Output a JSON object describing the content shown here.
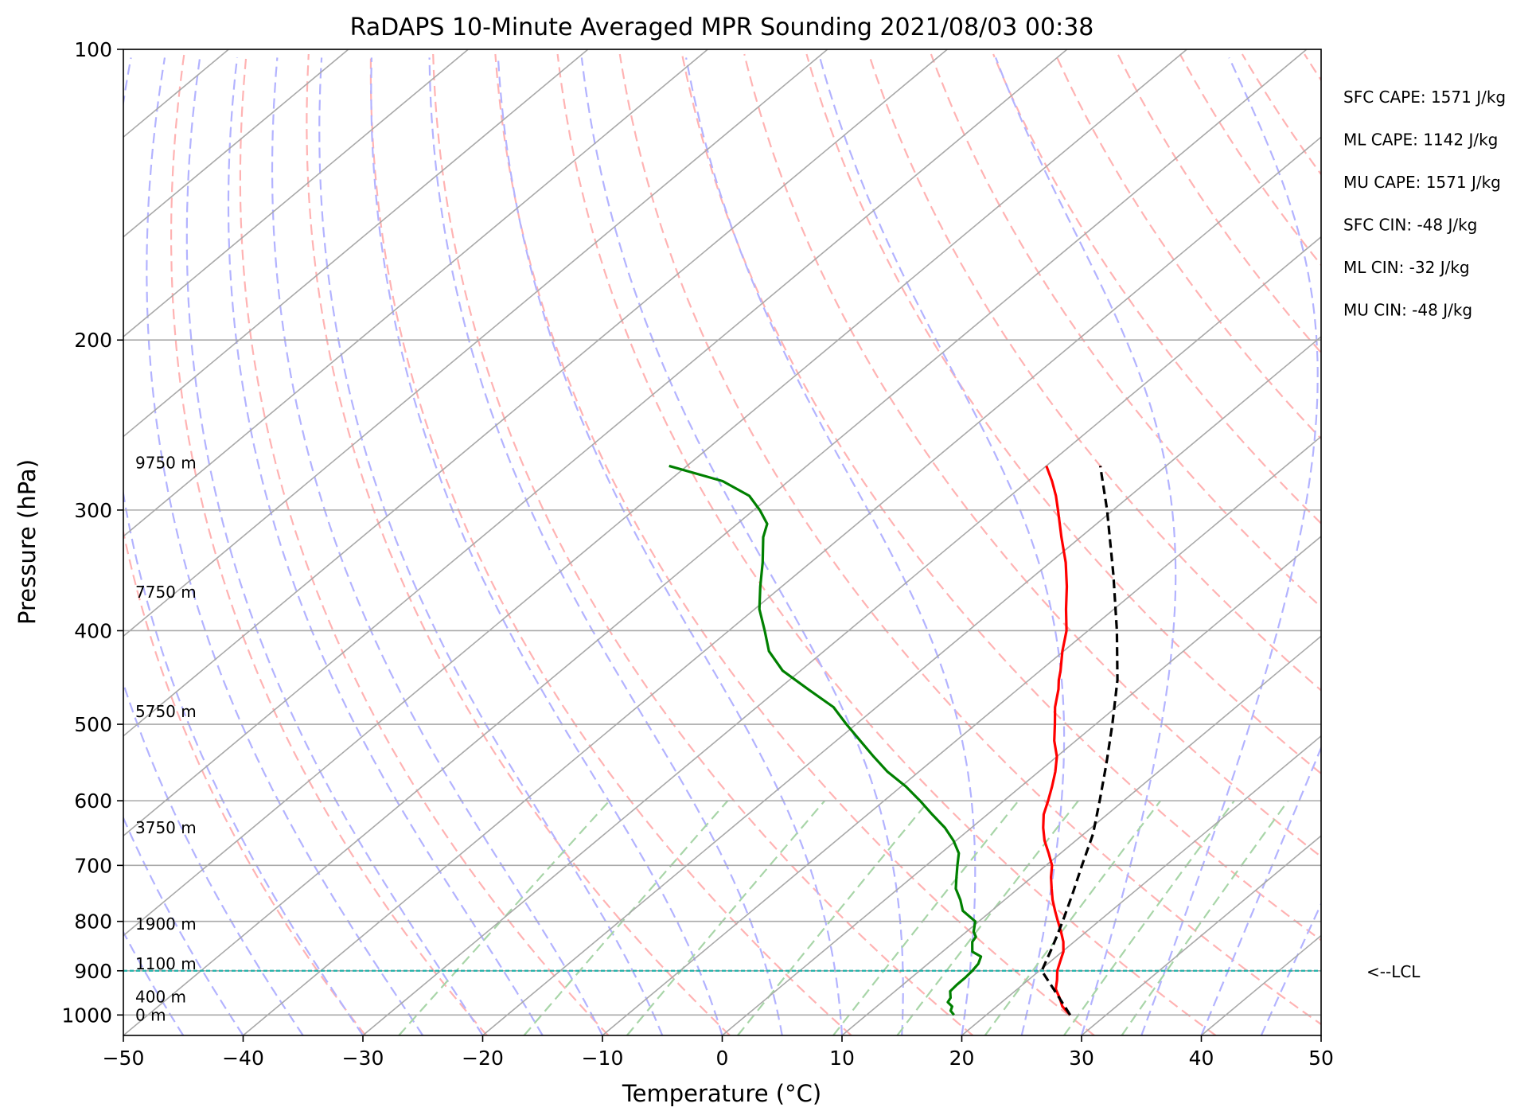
{
  "chart_data": {
    "type": "line",
    "title": "RaDAPS 10-Minute Averaged MPR Sounding 2021/08/03 00:38",
    "xlabel": "Temperature (°C)",
    "ylabel": "Pressure (hPa)",
    "xlim": [
      -50,
      50
    ],
    "ylim": [
      1050,
      100
    ],
    "y_scale": "log",
    "skew_t": true,
    "x_ticks": [
      -50,
      -40,
      -30,
      -20,
      -10,
      0,
      10,
      20,
      30,
      40,
      50
    ],
    "x_tick_labels": [
      "−50",
      "−40",
      "−30",
      "−20",
      "−10",
      "0",
      "10",
      "20",
      "30",
      "40",
      "50"
    ],
    "y_ticks": [
      1000,
      900,
      800,
      700,
      600,
      500,
      400,
      300,
      200,
      100
    ],
    "y_tick_labels": [
      "1000",
      "900",
      "800",
      "700",
      "600",
      "500",
      "400",
      "300",
      "200",
      "100"
    ],
    "grid": true,
    "series": [
      {
        "role": "temperature",
        "color": "#ff0000",
        "style": "solid",
        "points": [
          [
            1000,
            27.0
          ],
          [
            980,
            25.5
          ],
          [
            960,
            24.4
          ],
          [
            940,
            23.2
          ],
          [
            920,
            22.4
          ],
          [
            900,
            21.5
          ],
          [
            880,
            20.8
          ],
          [
            860,
            20.1
          ],
          [
            840,
            19.1
          ],
          [
            820,
            17.9
          ],
          [
            800,
            16.6
          ],
          [
            780,
            15.3
          ],
          [
            760,
            14.0
          ],
          [
            740,
            12.8
          ],
          [
            720,
            11.6
          ],
          [
            700,
            10.5
          ],
          [
            680,
            9.0
          ],
          [
            660,
            7.4
          ],
          [
            640,
            6.0
          ],
          [
            620,
            4.7
          ],
          [
            600,
            3.7
          ],
          [
            580,
            2.6
          ],
          [
            560,
            1.4
          ],
          [
            540,
            0.0
          ],
          [
            520,
            -1.8
          ],
          [
            500,
            -3.4
          ],
          [
            480,
            -5.1
          ],
          [
            460,
            -6.6
          ],
          [
            450,
            -7.5
          ],
          [
            440,
            -8.3
          ],
          [
            420,
            -10.1
          ],
          [
            400,
            -11.8
          ],
          [
            380,
            -14.0
          ],
          [
            360,
            -16.2
          ],
          [
            340,
            -18.7
          ],
          [
            320,
            -21.6
          ],
          [
            300,
            -24.6
          ],
          [
            290,
            -26.2
          ],
          [
            280,
            -28.0
          ],
          [
            270,
            -30.0
          ]
        ]
      },
      {
        "role": "dewpoint",
        "color": "#008000",
        "style": "solid",
        "points": [
          [
            1000,
            17.3
          ],
          [
            990,
            16.6
          ],
          [
            980,
            16.3
          ],
          [
            970,
            15.5
          ],
          [
            960,
            15.3
          ],
          [
            945,
            14.6
          ],
          [
            930,
            14.5
          ],
          [
            915,
            14.5
          ],
          [
            900,
            14.4
          ],
          [
            885,
            14.2
          ],
          [
            870,
            13.7
          ],
          [
            860,
            12.5
          ],
          [
            850,
            12.0
          ],
          [
            840,
            11.5
          ],
          [
            830,
            11.3
          ],
          [
            820,
            10.6
          ],
          [
            800,
            9.7
          ],
          [
            780,
            7.6
          ],
          [
            760,
            6.3
          ],
          [
            740,
            4.8
          ],
          [
            720,
            3.7
          ],
          [
            700,
            2.6
          ],
          [
            680,
            1.5
          ],
          [
            660,
            -0.2
          ],
          [
            640,
            -2.2
          ],
          [
            620,
            -4.6
          ],
          [
            600,
            -7.0
          ],
          [
            580,
            -9.6
          ],
          [
            560,
            -12.6
          ],
          [
            540,
            -15.3
          ],
          [
            520,
            -18.0
          ],
          [
            500,
            -20.8
          ],
          [
            480,
            -23.6
          ],
          [
            460,
            -27.5
          ],
          [
            440,
            -31.5
          ],
          [
            420,
            -34.6
          ],
          [
            400,
            -37.0
          ],
          [
            380,
            -39.6
          ],
          [
            360,
            -41.8
          ],
          [
            340,
            -44.0
          ],
          [
            320,
            -46.5
          ],
          [
            310,
            -47.5
          ],
          [
            300,
            -49.5
          ],
          [
            290,
            -51.8
          ],
          [
            280,
            -55.5
          ],
          [
            270,
            -61.5
          ]
        ]
      },
      {
        "role": "parcel",
        "color": "#000000",
        "style": "dashed",
        "points": [
          [
            1000,
            27.0
          ],
          [
            950,
            23.7
          ],
          [
            900,
            20.2
          ],
          [
            850,
            18.7
          ],
          [
            800,
            17.0
          ],
          [
            750,
            15.1
          ],
          [
            700,
            13.0
          ],
          [
            650,
            10.8
          ],
          [
            600,
            8.0
          ],
          [
            550,
            4.9
          ],
          [
            500,
            1.4
          ],
          [
            450,
            -2.6
          ],
          [
            400,
            -7.6
          ],
          [
            350,
            -13.5
          ],
          [
            300,
            -20.5
          ],
          [
            270,
            -25.5
          ]
        ]
      }
    ],
    "lcl_pressure": 900,
    "lcl_label": "<--LCL",
    "height_labels": [
      {
        "pressure": 1000,
        "label": "0 m"
      },
      {
        "pressure": 958,
        "label": "400 m"
      },
      {
        "pressure": 885,
        "label": "1100 m"
      },
      {
        "pressure": 805,
        "label": "1900 m"
      },
      {
        "pressure": 640,
        "label": "3750 m"
      },
      {
        "pressure": 485,
        "label": "5750 m"
      },
      {
        "pressure": 365,
        "label": "7750 m"
      },
      {
        "pressure": 268,
        "label": "9750 m"
      }
    ],
    "stats": [
      "SFC CAPE: 1571 J/kg",
      "ML CAPE: 1142 J/kg",
      "MU CAPE: 1571 J/kg",
      "SFC CIN: -48 J/kg",
      "ML CIN: -32 J/kg",
      "MU CIN: -48 J/kg"
    ],
    "colors": {
      "isotherm": "#a9a9a9",
      "dry_adiabat": "#ffb3b3",
      "moist_adiabat": "#b3b3ff",
      "mixing_ratio": "#a8d5a8",
      "lcl_line": "#20b2aa"
    }
  }
}
